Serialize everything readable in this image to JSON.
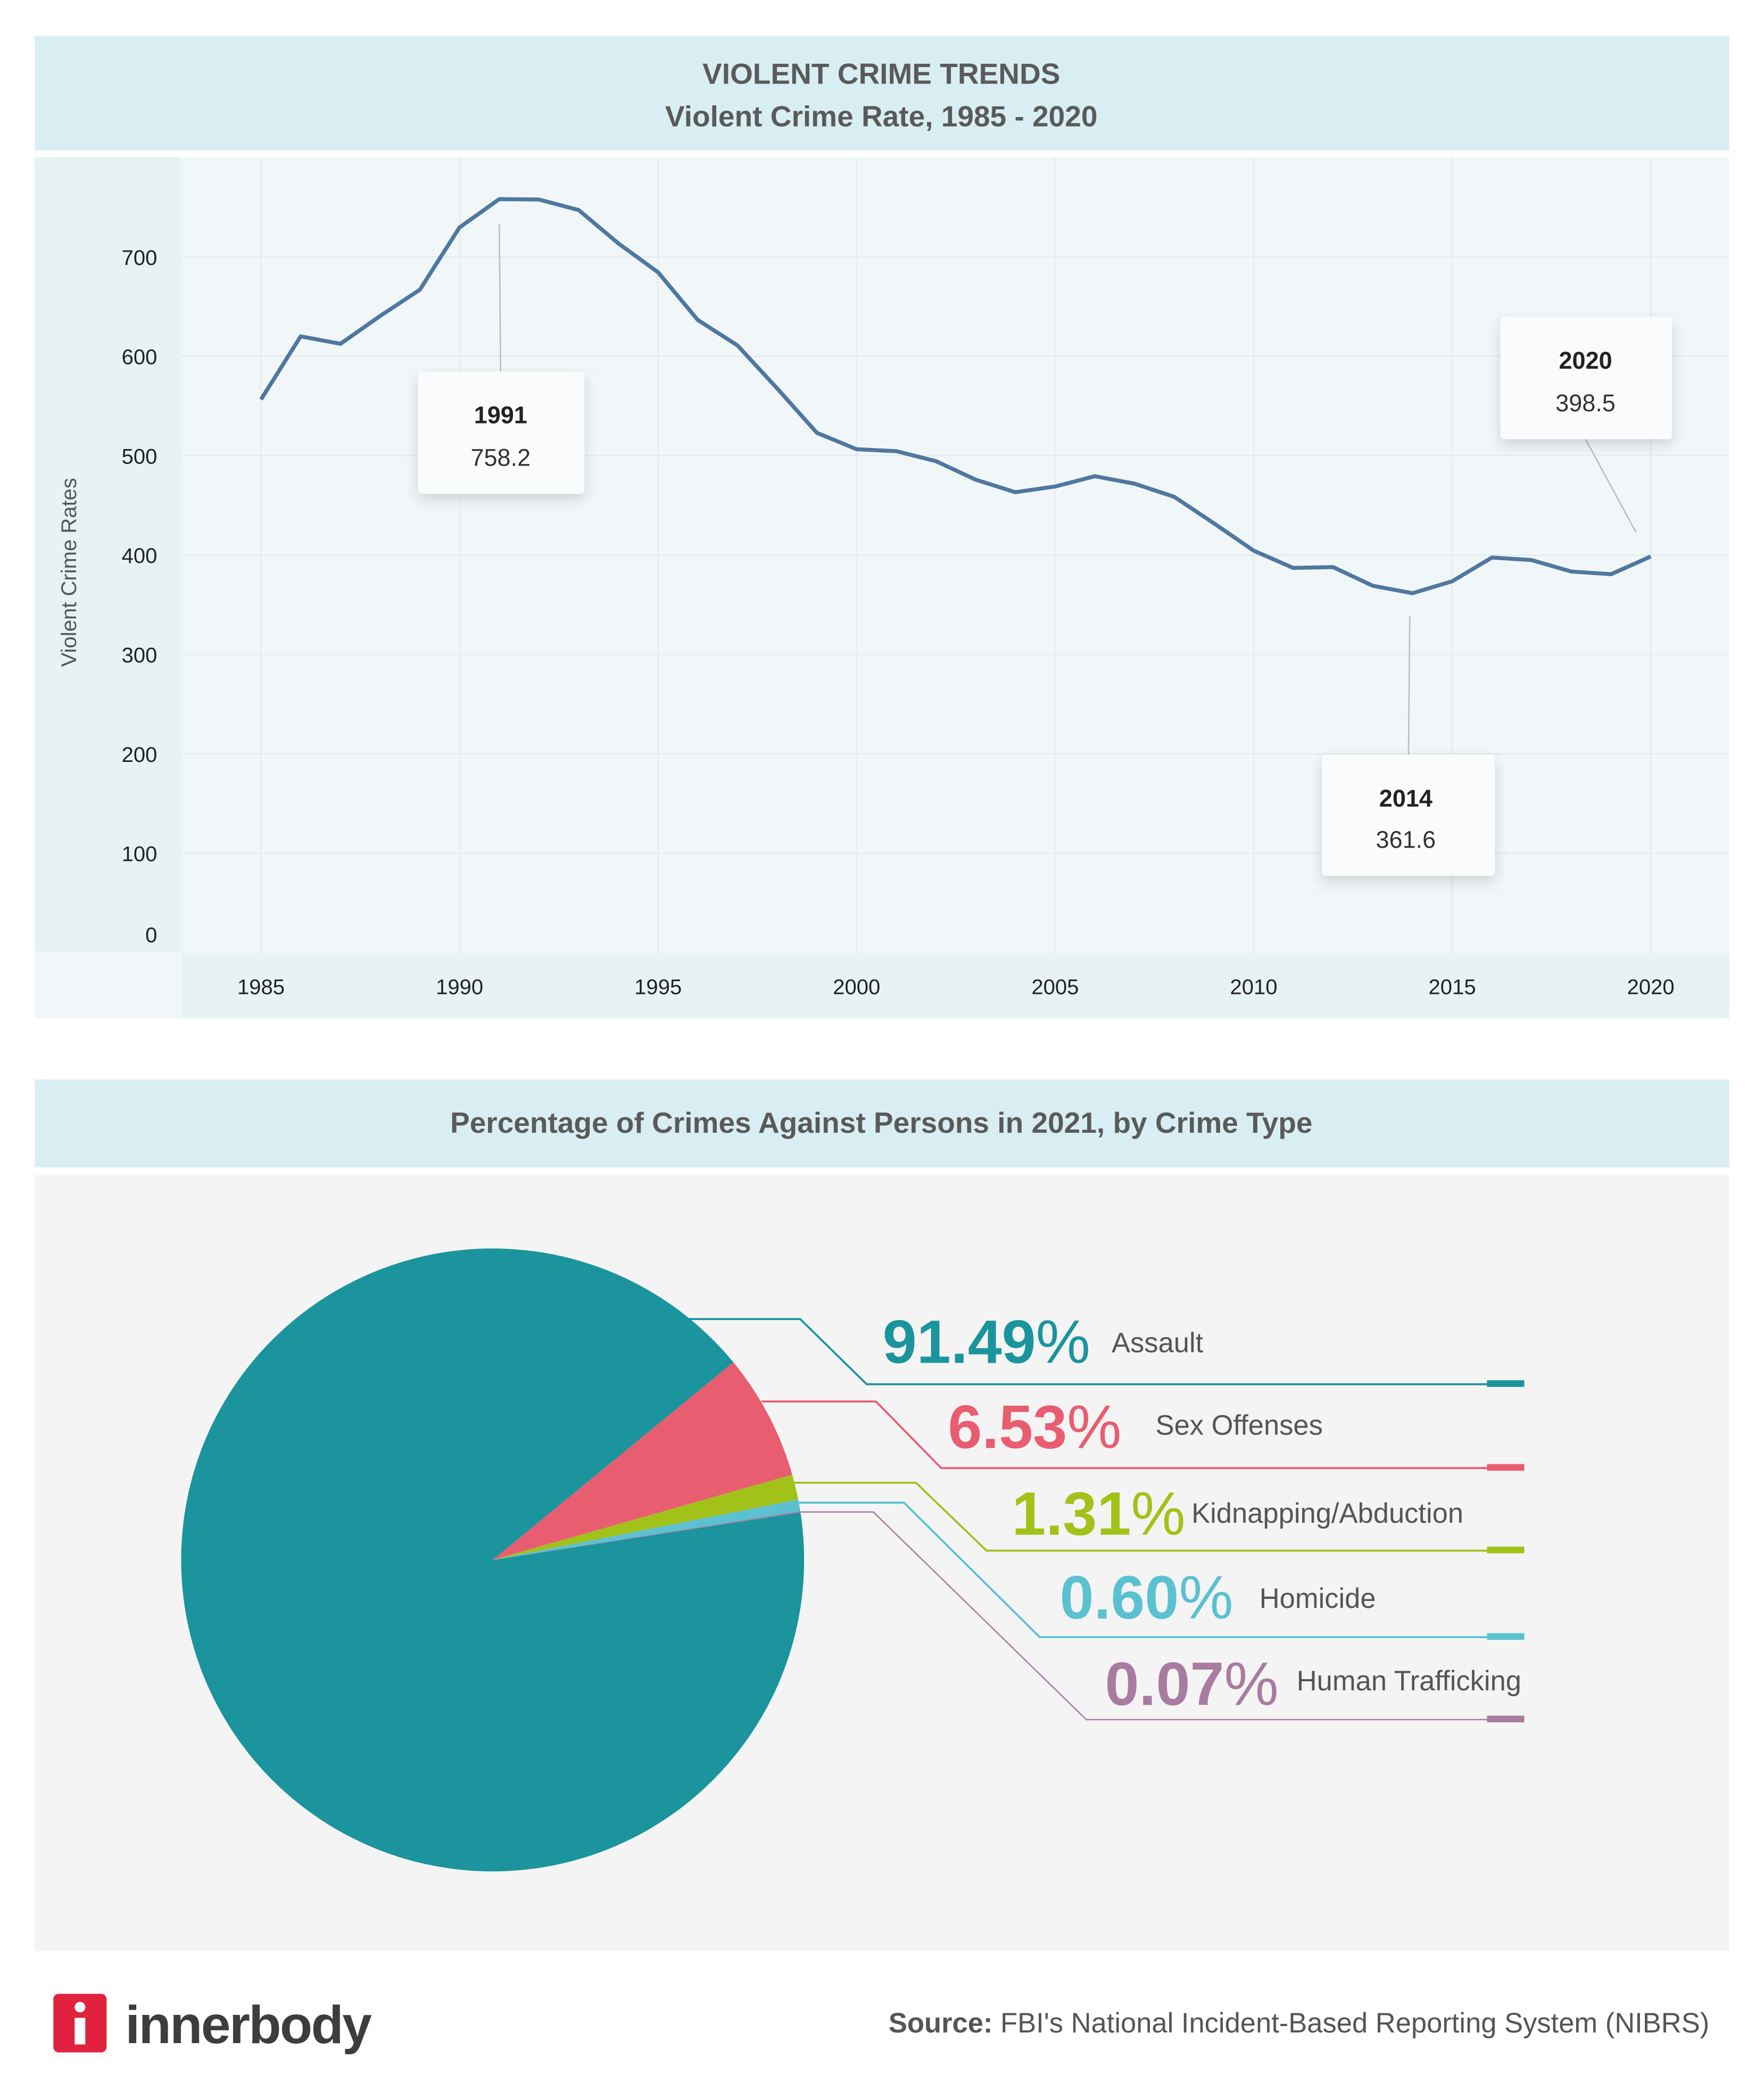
{
  "line_header": {
    "title": "VIOLENT CRIME TRENDS",
    "subtitle": "Violent Crime Rate, 1985 - 2020"
  },
  "pie_header": {
    "title": "Percentage of Crimes Against Persons in 2021, by Crime Type"
  },
  "footer": {
    "logo_text": "innerbody",
    "source_label": "Source:",
    "source_text": " FBI's National Incident-Based Reporting System (NIBRS)"
  },
  "chart_data": [
    {
      "type": "line",
      "title": "VIOLENT CRIME TRENDS",
      "subtitle": "Violent Crime Rate, 1985 - 2020",
      "xlabel": "",
      "ylabel": "Violent Crime Rates",
      "ylim": [
        0,
        700
      ],
      "yticks": [
        "0",
        "100",
        "200",
        "300",
        "400",
        "500",
        "600",
        "700"
      ],
      "xticks": [
        "1985",
        "1990",
        "1995",
        "2000",
        "2005",
        "2010",
        "2015",
        "2020"
      ],
      "grid": true,
      "color": "#4f77a0",
      "x": [
        1985,
        1986,
        1987,
        1988,
        1989,
        1990,
        1991,
        1992,
        1993,
        1994,
        1995,
        1996,
        1997,
        1998,
        1999,
        2000,
        2001,
        2002,
        2003,
        2004,
        2005,
        2006,
        2007,
        2008,
        2009,
        2010,
        2011,
        2012,
        2013,
        2014,
        2015,
        2016,
        2017,
        2018,
        2019,
        2020
      ],
      "y": [
        556.6,
        620.1,
        612.5,
        640.6,
        666.9,
        729.6,
        758.2,
        757.7,
        747.1,
        713.6,
        684.5,
        636.6,
        611.0,
        567.6,
        523.0,
        506.5,
        504.5,
        494.4,
        475.8,
        463.2,
        469.0,
        479.3,
        471.8,
        458.6,
        431.9,
        404.5,
        387.1,
        387.8,
        369.1,
        361.6,
        373.7,
        397.5,
        394.9,
        383.4,
        380.8,
        398.5
      ],
      "annotations": [
        {
          "year": "1991",
          "value": "758.2"
        },
        {
          "year": "2014",
          "value": "361.6"
        },
        {
          "year": "2020",
          "value": "398.5"
        }
      ]
    },
    {
      "type": "pie",
      "title": "Percentage of Crimes Against Persons in 2021, by Crime Type",
      "slices": [
        {
          "label": "Assault",
          "value": 91.49,
          "pct_text": "91.49",
          "color": "#1b949e"
        },
        {
          "label": "Sex Offenses",
          "value": 6.53,
          "pct_text": "6.53",
          "color": "#e85d70"
        },
        {
          "label": "Kidnapping/Abduction",
          "value": 1.31,
          "pct_text": "1.31",
          "color": "#a2c21a"
        },
        {
          "label": "Homicide",
          "value": 0.6,
          "pct_text": "0.60",
          "color": "#5bc1d1"
        },
        {
          "label": "Human Trafficking",
          "value": 0.07,
          "pct_text": "0.07",
          "color": "#a87ca0"
        }
      ],
      "percent_sign": "%"
    }
  ]
}
